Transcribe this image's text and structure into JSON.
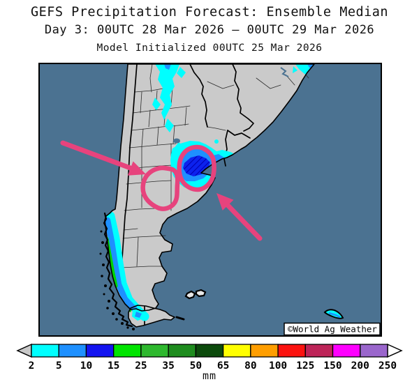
{
  "title": {
    "line1": "GEFS Precipitation Forecast: Ensemble Median",
    "line2": "Day 3: 00UTC 28 Mar 2026 – 00UTC 29 Mar 2026",
    "line3": "Model Initialized 00UTC 25 Mar 2026"
  },
  "map": {
    "credit": "©World Ag Weather"
  },
  "legend": {
    "unit": "mm",
    "tick_labels": [
      "2",
      "5",
      "10",
      "15",
      "25",
      "35",
      "50",
      "65",
      "80",
      "100",
      "125",
      "150",
      "200",
      "250"
    ],
    "cell_colors": [
      "#00ffff",
      "#1e90ff",
      "#1414f0",
      "#00e400",
      "#2eb82e",
      "#1e8c1e",
      "#0c4a0c",
      "#ffff00",
      "#ff9e00",
      "#fb1310",
      "#bd2458",
      "#fe00fe",
      "#9a66cc"
    ],
    "under_range_color": "#c8c8c8",
    "over_range_color": "#ffffff"
  },
  "colors": {
    "ocean": "#4b7291",
    "land": "#cacaca",
    "annotation_pink": "#e7437d",
    "precip_cyan": "#00ffff",
    "precip_medium_blue": "#1e90ff",
    "precip_dark_blue": "#0c22ee",
    "precip_green": "#00d400"
  }
}
